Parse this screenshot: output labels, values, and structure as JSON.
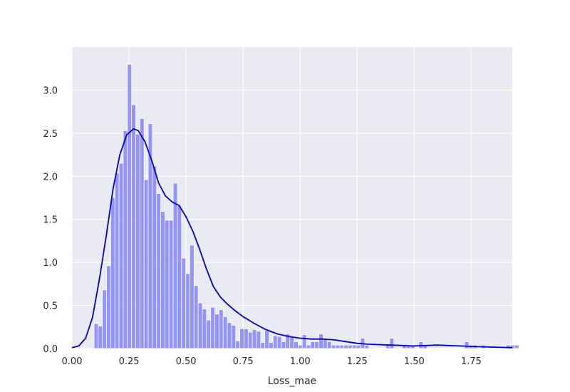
{
  "chart_data": {
    "type": "bar",
    "title": "",
    "xlabel": "Loss_mae",
    "ylabel": "",
    "xlim": [
      0,
      1.93
    ],
    "ylim": [
      0,
      3.5
    ],
    "grid": true,
    "background_color": "#eaeaf2",
    "bar_color": "#8080ff",
    "curve_color": "#0000cc",
    "x_ticks": [
      {
        "value": 0.0,
        "label": "0.00"
      },
      {
        "value": 0.25,
        "label": "0.25"
      },
      {
        "value": 0.5,
        "label": "0.50"
      },
      {
        "value": 0.75,
        "label": "0.75"
      },
      {
        "value": 1.0,
        "label": "1.00"
      },
      {
        "value": 1.25,
        "label": "1.25"
      },
      {
        "value": 1.5,
        "label": "1.50"
      },
      {
        "value": 1.75,
        "label": "1.75"
      }
    ],
    "y_ticks": [
      {
        "value": 0.0,
        "label": "0.0"
      },
      {
        "value": 0.5,
        "label": "0.5"
      },
      {
        "value": 1.0,
        "label": "1.0"
      },
      {
        "value": 1.5,
        "label": "1.5"
      },
      {
        "value": 2.0,
        "label": "2.0"
      },
      {
        "value": 2.5,
        "label": "2.5"
      },
      {
        "value": 3.0,
        "label": "3.0"
      }
    ],
    "histogram": {
      "bin_start": 0.097,
      "bin_width": 0.01825,
      "values": [
        0.29,
        0.26,
        0.68,
        0.96,
        1.75,
        2.04,
        2.15,
        2.53,
        3.3,
        2.83,
        2.49,
        2.67,
        1.96,
        2.61,
        2.12,
        1.8,
        1.59,
        1.49,
        1.49,
        1.92,
        1.66,
        1.05,
        0.87,
        1.2,
        0.73,
        0.53,
        0.46,
        0.33,
        0.48,
        0.4,
        0.45,
        0.37,
        0.3,
        0.27,
        0.09,
        0.23,
        0.23,
        0.19,
        0.22,
        0.2,
        0.07,
        0.21,
        0.07,
        0.15,
        0.14,
        0.08,
        0.17,
        0.14,
        0.08,
        0.04,
        0.16,
        0.04,
        0.08,
        0.08,
        0.17,
        0.12,
        0.08,
        0.04,
        0.04,
        0.04,
        0.04,
        0.04,
        0.04,
        0.04,
        0.12,
        0.04,
        0.0,
        0.0,
        0.0,
        0.0,
        0.04,
        0.12,
        0.0,
        0.0,
        0.04,
        0.04,
        0.04,
        0.0,
        0.08,
        0.04,
        0.0,
        0.0,
        0.0,
        0.0,
        0.0,
        0.0,
        0.0,
        0.0,
        0.0,
        0.08,
        0.04,
        0.04,
        0.0,
        0.04,
        0.0,
        0.0,
        0.0,
        0.0,
        0.0,
        0.04,
        0.04,
        0.04,
        0.0,
        0.0,
        0.0,
        0.0,
        0.0,
        0.0,
        0.0,
        0.0,
        0.0,
        0.0,
        0.0,
        0.0,
        0.0,
        0.04
      ]
    },
    "kde": {
      "x": [
        0.0,
        0.03,
        0.06,
        0.09,
        0.12,
        0.15,
        0.18,
        0.21,
        0.24,
        0.27,
        0.29,
        0.32,
        0.35,
        0.38,
        0.41,
        0.44,
        0.47,
        0.5,
        0.53,
        0.56,
        0.59,
        0.62,
        0.65,
        0.68,
        0.71,
        0.75,
        0.8,
        0.85,
        0.9,
        0.95,
        1.0,
        1.05,
        1.1,
        1.15,
        1.2,
        1.25,
        1.3,
        1.4,
        1.5,
        1.6,
        1.7,
        1.8,
        1.93
      ],
      "y": [
        0.01,
        0.03,
        0.12,
        0.36,
        0.8,
        1.3,
        1.85,
        2.25,
        2.48,
        2.55,
        2.53,
        2.4,
        2.18,
        1.92,
        1.77,
        1.7,
        1.66,
        1.53,
        1.36,
        1.15,
        0.92,
        0.72,
        0.6,
        0.52,
        0.45,
        0.37,
        0.29,
        0.22,
        0.17,
        0.14,
        0.12,
        0.11,
        0.11,
        0.1,
        0.08,
        0.06,
        0.05,
        0.04,
        0.03,
        0.04,
        0.03,
        0.02,
        0.01
      ]
    }
  }
}
